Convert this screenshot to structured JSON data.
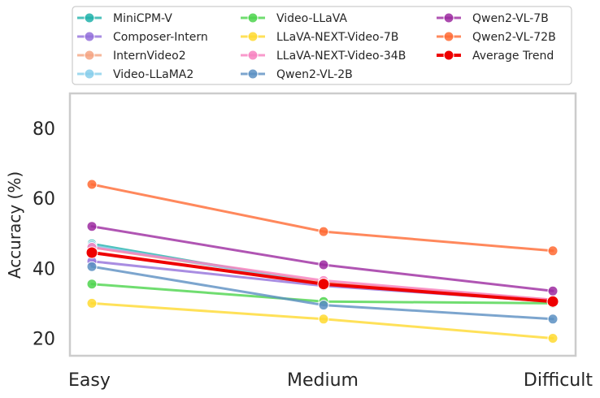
{
  "chart_data": {
    "type": "line",
    "categories": [
      "Easy",
      "Medium",
      "Difficult"
    ],
    "ylabel": "Accuracy (%)",
    "xlabel": "",
    "ylim": [
      15,
      90
    ],
    "yticks": [
      20,
      40,
      60,
      80
    ],
    "grid": false,
    "legend_position": "top",
    "series": [
      {
        "name": "MiniCPM-V",
        "color": "#20b2aa",
        "values": [
          47.0,
          35.5,
          30.5
        ]
      },
      {
        "name": "Composer-Intern",
        "color": "#9370db",
        "values": [
          42.0,
          35.0,
          30.5
        ]
      },
      {
        "name": "InternVideo2",
        "color": "#f4a582",
        "values": [
          46.0,
          36.0,
          31.0
        ]
      },
      {
        "name": "Video-LLaMA2",
        "color": "#87ceeb",
        "values": [
          46.5,
          35.5,
          30.5
        ]
      },
      {
        "name": "Video-LLaVA",
        "color": "#4cd44c",
        "values": [
          35.5,
          30.5,
          30.0
        ]
      },
      {
        "name": "LLaVA-NEXT-Video-7B",
        "color": "#ffd92f",
        "values": [
          30.0,
          25.5,
          20.0
        ]
      },
      {
        "name": "LLaVA-NEXT-Video-34B",
        "color": "#f781bf",
        "values": [
          46.0,
          36.5,
          31.0
        ]
      },
      {
        "name": "Qwen2-VL-2B",
        "color": "#5b8fc2",
        "values": [
          40.5,
          29.5,
          25.5
        ]
      },
      {
        "name": "Qwen2-VL-7B",
        "color": "#9c2aa0",
        "values": [
          52.0,
          41.0,
          33.5
        ]
      },
      {
        "name": "Qwen2-VL-72B",
        "color": "#ff6a33",
        "values": [
          64.0,
          50.5,
          45.0
        ]
      },
      {
        "name": "Average Trend",
        "color": "#ee0000",
        "values": [
          44.5,
          35.5,
          30.5
        ]
      }
    ]
  }
}
